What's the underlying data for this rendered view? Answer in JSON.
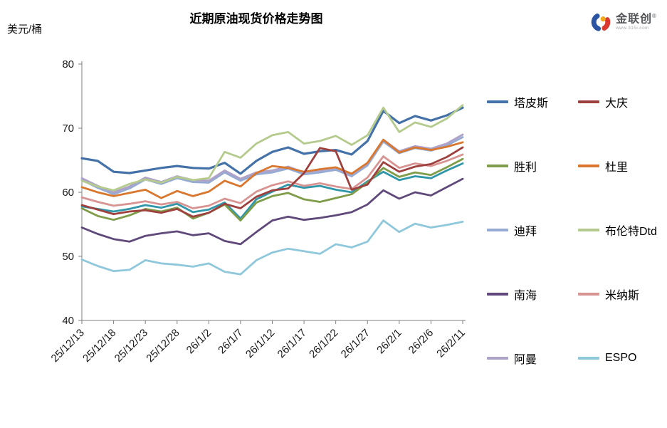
{
  "header": {
    "title": "近期原油现货价格走势图",
    "unit_label": "美元/桶"
  },
  "logo": {
    "brand": "金联创",
    "registered_mark": "®",
    "url": "www.315i.com",
    "icon_colors": {
      "blue": "#2B55A2",
      "yellow": "#F2A71B",
      "red": "#D9392F"
    }
  },
  "legend": {
    "items": [
      {
        "label": "塔皮斯",
        "color": "#4472A8"
      },
      {
        "label": "大庆",
        "color": "#9E413E"
      },
      {
        "label": "胜利",
        "color": "#7F9C49"
      },
      {
        "label": "杜里",
        "color": "#D9772E"
      },
      {
        "label": "迪拜",
        "color": "#95ABD3"
      },
      {
        "label": "布伦特Dtd",
        "color": "#B5CB8E"
      },
      {
        "label": "南海",
        "color": "#5F497A"
      },
      {
        "label": "米纳斯",
        "color": "#D79492"
      },
      {
        "label": "阿曼",
        "color": "#AFA2C9"
      },
      {
        "label": "ESPO",
        "color": "#8FC7DB"
      }
    ]
  },
  "chart_data": {
    "type": "line",
    "title": "近期原油现货价格走势图",
    "ylabel": "美元/桶",
    "ylim": [
      40,
      80
    ],
    "y_ticks": [
      80,
      70,
      60,
      50,
      40
    ],
    "grid": false,
    "legend_position": "right",
    "x_labels": [
      "25/12/13",
      "25/12/18",
      "25/12/23",
      "25/12/28",
      "26/1/2",
      "26/1/7",
      "26/1/12",
      "26/1/17",
      "26/1/22",
      "26/1/27",
      "26/2/1",
      "26/2/6",
      "26/2/11"
    ],
    "points_per_label_interval": 2,
    "series": [
      {
        "name": "塔皮斯",
        "color": "#4472A8",
        "values": [
          65.3,
          64.9,
          63.2,
          63.0,
          63.4,
          63.8,
          64.1,
          63.8,
          63.7,
          64.6,
          62.9,
          64.9,
          66.3,
          67.0,
          66.0,
          66.4,
          66.6,
          65.9,
          68.0,
          72.7,
          70.8,
          71.9,
          71.2,
          72.0,
          73.2
        ]
      },
      {
        "name": "大庆",
        "color": "#9E413E",
        "values": [
          58.0,
          57.3,
          56.6,
          57.0,
          57.2,
          56.8,
          57.4,
          56.2,
          56.8,
          58.2,
          57.5,
          59.3,
          60.3,
          60.6,
          63.0,
          66.9,
          66.4,
          60.4,
          61.2,
          64.7,
          63.2,
          64.0,
          64.4,
          65.5,
          67.0
        ]
      },
      {
        "name": "胜利",
        "color": "#7F9C49",
        "values": [
          57.5,
          56.3,
          55.7,
          56.4,
          57.4,
          57.0,
          57.6,
          55.9,
          56.8,
          58.1,
          55.6,
          58.4,
          59.4,
          59.9,
          58.9,
          58.5,
          59.1,
          59.7,
          61.5,
          63.8,
          62.4,
          63.1,
          62.7,
          63.9,
          65.2
        ]
      },
      {
        "name": "杜里",
        "color": "#D9772E",
        "values": [
          60.8,
          60.0,
          59.4,
          59.9,
          60.4,
          59.1,
          60.2,
          59.4,
          60.1,
          61.8,
          60.9,
          63.0,
          64.1,
          63.8,
          63.2,
          63.6,
          63.9,
          62.9,
          64.6,
          68.2,
          66.2,
          67.0,
          66.6,
          67.1,
          67.8
        ]
      },
      {
        "name": "迪拜",
        "color": "#95ABD3",
        "values": [
          61.9,
          60.7,
          59.7,
          60.6,
          62.0,
          61.3,
          62.2,
          61.6,
          61.5,
          63.1,
          61.8,
          62.8,
          63.1,
          63.7,
          62.8,
          63.1,
          63.5,
          62.5,
          64.2,
          67.9,
          66.1,
          66.9,
          66.5,
          67.3,
          68.6
        ]
      },
      {
        "name": "布伦特Dtd",
        "color": "#B5CB8E",
        "values": [
          61.8,
          60.9,
          60.3,
          61.3,
          62.0,
          61.5,
          62.4,
          61.9,
          62.2,
          66.3,
          65.4,
          67.6,
          68.9,
          69.4,
          67.6,
          68.0,
          68.8,
          67.4,
          68.9,
          73.2,
          69.4,
          70.9,
          70.2,
          71.5,
          73.6
        ]
      },
      {
        "name": "南海",
        "color": "#5F497A",
        "values": [
          54.5,
          53.5,
          52.7,
          52.3,
          53.2,
          53.6,
          53.9,
          53.3,
          53.6,
          52.4,
          51.9,
          53.8,
          55.6,
          56.2,
          55.7,
          56.0,
          56.4,
          56.9,
          58.1,
          60.3,
          59.0,
          60.0,
          59.5,
          60.8,
          62.1
        ]
      },
      {
        "name": "米纳斯",
        "color": "#D79492",
        "values": [
          59.2,
          58.5,
          57.9,
          58.2,
          58.6,
          58.1,
          58.5,
          57.5,
          57.9,
          59.0,
          58.3,
          60.1,
          61.1,
          61.7,
          61.0,
          61.4,
          60.9,
          60.5,
          62.3,
          65.6,
          63.8,
          64.5,
          64.1,
          64.9,
          65.9
        ]
      },
      {
        "name": "阿曼",
        "color": "#AFA2C9",
        "values": [
          62.2,
          61.0,
          60.0,
          60.9,
          62.3,
          61.6,
          62.5,
          61.9,
          61.8,
          63.4,
          62.1,
          63.1,
          63.4,
          64.0,
          63.1,
          63.4,
          63.8,
          62.8,
          64.5,
          68.2,
          66.4,
          67.2,
          66.8,
          67.6,
          69.0
        ]
      },
      {
        "name": "ESPO",
        "color": "#8FC7DB",
        "values": [
          49.5,
          48.5,
          47.7,
          47.9,
          49.4,
          48.9,
          48.7,
          48.4,
          48.9,
          47.6,
          47.2,
          49.4,
          50.6,
          51.2,
          50.8,
          50.4,
          51.9,
          51.4,
          52.3,
          55.6,
          53.8,
          55.1,
          54.5,
          54.9,
          55.4
        ]
      },
      {
        "name": "",
        "color": "#2F97A9",
        "values": [
          57.8,
          57.4,
          57.0,
          57.4,
          58.0,
          57.6,
          58.2,
          56.9,
          57.3,
          58.4,
          55.9,
          58.9,
          60.1,
          61.2,
          60.7,
          61.0,
          60.4,
          60.0,
          61.7,
          63.2,
          61.9,
          62.5,
          62.2,
          63.4,
          64.5
        ]
      }
    ]
  }
}
